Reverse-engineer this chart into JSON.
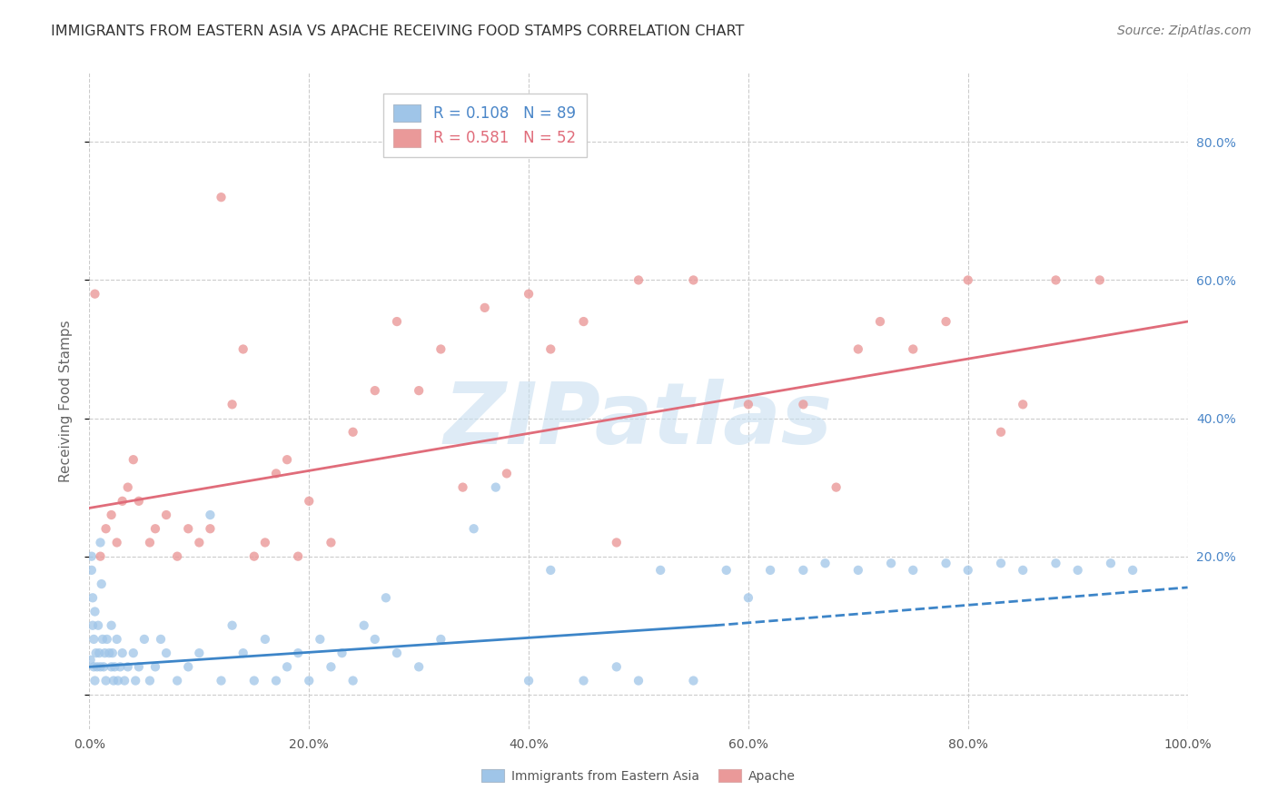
{
  "title": "IMMIGRANTS FROM EASTERN ASIA VS APACHE RECEIVING FOOD STAMPS CORRELATION CHART",
  "source": "Source: ZipAtlas.com",
  "ylabel": "Receiving Food Stamps",
  "watermark": "ZIPatlas",
  "xlim": [
    0.0,
    100.0
  ],
  "ylim": [
    -0.05,
    0.9
  ],
  "x_ticks": [
    0.0,
    20.0,
    40.0,
    60.0,
    80.0,
    100.0
  ],
  "x_tick_labels": [
    "0.0%",
    "20.0%",
    "40.0%",
    "60.0%",
    "80.0%",
    "100.0%"
  ],
  "y_ticks": [
    0.0,
    0.2,
    0.4,
    0.6,
    0.8
  ],
  "y_tick_labels_right": [
    "",
    "20.0%",
    "40.0%",
    "60.0%",
    "80.0%"
  ],
  "blue_scatter_x": [
    0.1,
    0.2,
    0.2,
    0.3,
    0.3,
    0.4,
    0.4,
    0.5,
    0.5,
    0.6,
    0.7,
    0.8,
    0.9,
    1.0,
    1.0,
    1.1,
    1.2,
    1.3,
    1.4,
    1.5,
    1.6,
    1.8,
    2.0,
    2.0,
    2.1,
    2.2,
    2.3,
    2.5,
    2.6,
    2.8,
    3.0,
    3.2,
    3.5,
    4.0,
    4.2,
    4.5,
    5.0,
    5.5,
    6.0,
    6.5,
    7.0,
    8.0,
    9.0,
    10.0,
    11.0,
    12.0,
    13.0,
    14.0,
    15.0,
    16.0,
    17.0,
    18.0,
    19.0,
    20.0,
    21.0,
    22.0,
    23.0,
    24.0,
    25.0,
    26.0,
    27.0,
    28.0,
    30.0,
    32.0,
    35.0,
    37.0,
    40.0,
    42.0,
    45.0,
    48.0,
    50.0,
    52.0,
    55.0,
    58.0,
    60.0,
    62.0,
    65.0,
    67.0,
    70.0,
    73.0,
    75.0,
    78.0,
    80.0,
    83.0,
    85.0,
    88.0,
    90.0,
    93.0,
    95.0
  ],
  "blue_scatter_y": [
    0.05,
    0.18,
    0.2,
    0.1,
    0.14,
    0.04,
    0.08,
    0.02,
    0.12,
    0.06,
    0.04,
    0.1,
    0.06,
    0.22,
    0.04,
    0.16,
    0.08,
    0.04,
    0.06,
    0.02,
    0.08,
    0.06,
    0.04,
    0.1,
    0.06,
    0.02,
    0.04,
    0.08,
    0.02,
    0.04,
    0.06,
    0.02,
    0.04,
    0.06,
    0.02,
    0.04,
    0.08,
    0.02,
    0.04,
    0.08,
    0.06,
    0.02,
    0.04,
    0.06,
    0.26,
    0.02,
    0.1,
    0.06,
    0.02,
    0.08,
    0.02,
    0.04,
    0.06,
    0.02,
    0.08,
    0.04,
    0.06,
    0.02,
    0.1,
    0.08,
    0.14,
    0.06,
    0.04,
    0.08,
    0.24,
    0.3,
    0.02,
    0.18,
    0.02,
    0.04,
    0.02,
    0.18,
    0.02,
    0.18,
    0.14,
    0.18,
    0.18,
    0.19,
    0.18,
    0.19,
    0.18,
    0.19,
    0.18,
    0.19,
    0.18,
    0.19,
    0.18,
    0.19,
    0.18
  ],
  "pink_scatter_x": [
    0.5,
    1.0,
    1.5,
    2.0,
    2.5,
    3.0,
    3.5,
    4.0,
    4.5,
    5.5,
    6.0,
    7.0,
    8.0,
    9.0,
    10.0,
    11.0,
    12.0,
    13.0,
    14.0,
    15.0,
    16.0,
    17.0,
    18.0,
    19.0,
    20.0,
    22.0,
    24.0,
    26.0,
    28.0,
    30.0,
    32.0,
    34.0,
    36.0,
    38.0,
    40.0,
    42.0,
    45.0,
    48.0,
    50.0,
    55.0,
    60.0,
    65.0,
    68.0,
    70.0,
    72.0,
    75.0,
    78.0,
    80.0,
    83.0,
    85.0,
    88.0,
    92.0
  ],
  "pink_scatter_y": [
    0.58,
    0.2,
    0.24,
    0.26,
    0.22,
    0.28,
    0.3,
    0.34,
    0.28,
    0.22,
    0.24,
    0.26,
    0.2,
    0.24,
    0.22,
    0.24,
    0.72,
    0.42,
    0.5,
    0.2,
    0.22,
    0.32,
    0.34,
    0.2,
    0.28,
    0.22,
    0.38,
    0.44,
    0.54,
    0.44,
    0.5,
    0.3,
    0.56,
    0.32,
    0.58,
    0.5,
    0.54,
    0.22,
    0.6,
    0.6,
    0.42,
    0.42,
    0.3,
    0.5,
    0.54,
    0.5,
    0.54,
    0.6,
    0.38,
    0.42,
    0.6,
    0.6
  ],
  "blue_line_solid": {
    "x": [
      0.0,
      57.0
    ],
    "y": [
      0.04,
      0.1
    ]
  },
  "blue_line_dashed": {
    "x": [
      57.0,
      100.0
    ],
    "y": [
      0.1,
      0.155
    ]
  },
  "pink_line": {
    "x": [
      0.0,
      100.0
    ],
    "y": [
      0.27,
      0.54
    ]
  },
  "blue_scatter_color": "#9fc5e8",
  "pink_scatter_color": "#ea9999",
  "blue_line_color": "#3d85c8",
  "pink_line_color": "#e06c7a",
  "background_color": "#ffffff",
  "grid_color": "#cccccc",
  "title_color": "#333333",
  "watermark_color": "#c8dff0",
  "title_fontsize": 11.5,
  "source_fontsize": 10,
  "axis_label_fontsize": 11,
  "tick_fontsize": 10,
  "legend_fontsize": 12
}
